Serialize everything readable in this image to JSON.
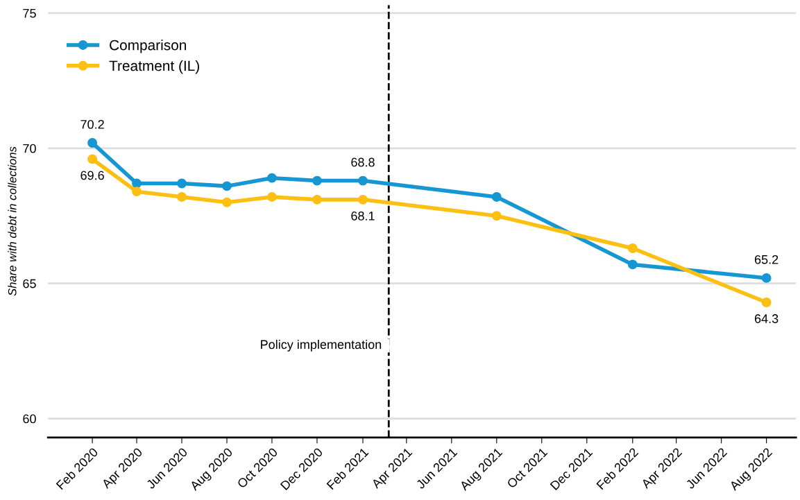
{
  "chart_data": {
    "type": "line",
    "ylabel": "Share with debt in collections",
    "x": [
      "2020-02",
      "2020-04",
      "2020-06",
      "2020-08",
      "2020-10",
      "2020-12",
      "2021-02",
      "2021-08",
      "2022-02",
      "2022-08"
    ],
    "series": [
      {
        "name": "Comparison",
        "color": "#1696d2",
        "values": [
          70.2,
          68.7,
          68.7,
          68.6,
          68.9,
          68.8,
          68.8,
          68.2,
          65.7,
          65.2
        ],
        "value_labels": [
          "70.2",
          null,
          null,
          null,
          null,
          null,
          "68.8",
          null,
          null,
          "65.2"
        ]
      },
      {
        "name": "Treatment (IL)",
        "color": "#fdbf11",
        "values": [
          69.6,
          68.4,
          68.2,
          68.0,
          68.2,
          68.1,
          68.1,
          67.5,
          66.3,
          64.3
        ],
        "value_labels": [
          "69.6",
          null,
          null,
          null,
          null,
          null,
          "68.1",
          null,
          null,
          "64.3"
        ]
      }
    ],
    "xlim": [
      "2019-12-03",
      "2022-09-10"
    ],
    "xticks": [
      {
        "value": "2020-02",
        "label": "Feb 2020"
      },
      {
        "value": "2020-04",
        "label": "Apr 2020"
      },
      {
        "value": "2020-06",
        "label": "Jun 2020"
      },
      {
        "value": "2020-08",
        "label": "Aug 2020"
      },
      {
        "value": "2020-10",
        "label": "Oct 2020"
      },
      {
        "value": "2020-12",
        "label": "Dec 2020"
      },
      {
        "value": "2021-02",
        "label": "Feb 2021"
      },
      {
        "value": "2021-04",
        "label": "Apr 2021"
      },
      {
        "value": "2021-06",
        "label": "Jun 2021"
      },
      {
        "value": "2021-08",
        "label": "Aug 2021"
      },
      {
        "value": "2021-10",
        "label": "Oct 2021"
      },
      {
        "value": "2021-12",
        "label": "Dec 2021"
      },
      {
        "value": "2022-02",
        "label": "Feb 2022"
      },
      {
        "value": "2022-04",
        "label": "Apr 2022"
      },
      {
        "value": "2022-06",
        "label": "Jun 2022"
      },
      {
        "value": "2022-08",
        "label": "Aug 2022"
      }
    ],
    "ylim": [
      59.3,
      75.3
    ],
    "yticks": [
      60,
      65,
      70,
      75
    ],
    "ref_lines": [
      {
        "axis": "x",
        "value": "2021-03-08",
        "label": "Policy implementation",
        "color": "#000000",
        "line_style": "dashed"
      }
    ],
    "grid": "y",
    "legend": "top left",
    "marker": "circle",
    "line_style": "solid"
  }
}
